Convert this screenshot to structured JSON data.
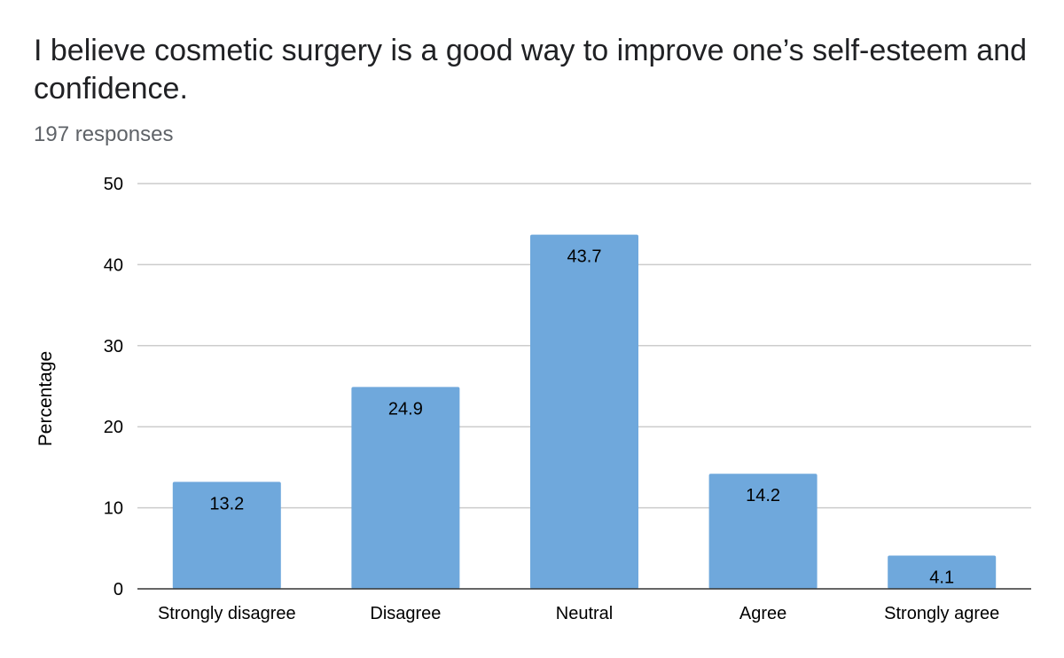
{
  "title": "I believe cosmetic surgery is a good way to improve one’s self-esteem and confidence.",
  "subtitle": "197 responses",
  "chart_data": {
    "type": "bar",
    "categories": [
      "Strongly disagree",
      "Disagree",
      "Neutral",
      "Agree",
      "Strongly agree"
    ],
    "values": [
      13.2,
      24.9,
      43.7,
      14.2,
      4.1
    ],
    "data_labels": [
      "13.2",
      "24.9",
      "43.7",
      "14.2",
      "4.1"
    ],
    "ylabel": "Percentage",
    "xlabel": "",
    "ylim": [
      0,
      50
    ],
    "yticks": [
      0,
      10,
      20,
      30,
      40,
      50
    ],
    "grid": true,
    "legend": "none",
    "bar_color": "#6fa8dc"
  }
}
